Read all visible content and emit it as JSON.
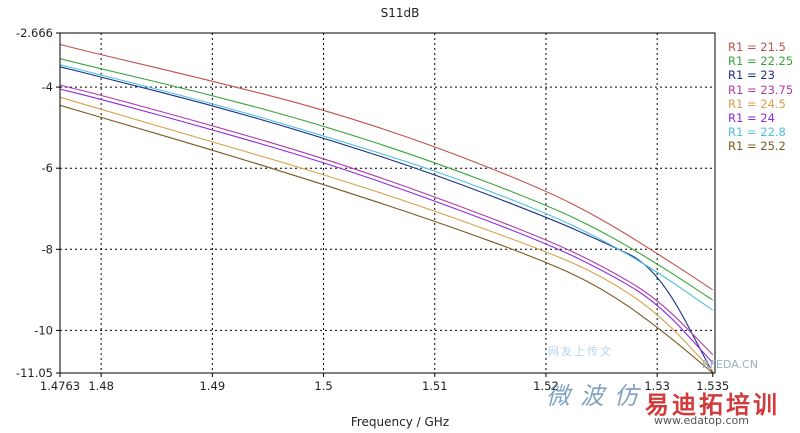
{
  "chart_data": {
    "type": "line",
    "title": "S11dB",
    "xlabel": "Frequency / GHz",
    "ylabel": "",
    "xlim": [
      1.4763,
      1.5352
    ],
    "ylim": [
      -11.05,
      -2.666
    ],
    "x_ticks": [
      1.4763,
      1.48,
      1.49,
      1.5,
      1.51,
      1.52,
      1.53,
      1.535
    ],
    "x_tick_labels": [
      "1.4763",
      "1.48",
      "1.49",
      "1.5",
      "1.51",
      "1.52",
      "1.53",
      "1.535"
    ],
    "y_ticks": [
      -2.666,
      -4,
      -6,
      -8,
      -10,
      -11.05
    ],
    "y_tick_labels": [
      "-2.666",
      "-4",
      "-6",
      "-8",
      "-10",
      "-11.05"
    ],
    "grid": true,
    "legend_position": "right",
    "series": [
      {
        "name": "R1 = 21.5",
        "color": "#c0504d",
        "x": [
          1.4763,
          1.48,
          1.49,
          1.5,
          1.51,
          1.52,
          1.525,
          1.53,
          1.535
        ],
        "y": [
          -2.95,
          -3.2,
          -3.85,
          -4.55,
          -5.45,
          -6.55,
          -7.25,
          -8.1,
          -9.0
        ]
      },
      {
        "name": "R1 = 22.25",
        "color": "#3aa53a",
        "x": [
          1.4763,
          1.48,
          1.49,
          1.5,
          1.51,
          1.52,
          1.525,
          1.53,
          1.535
        ],
        "y": [
          -3.3,
          -3.55,
          -4.2,
          -4.95,
          -5.85,
          -6.9,
          -7.55,
          -8.35,
          -9.25
        ]
      },
      {
        "name": "R1 = 23",
        "color": "#1b2f86",
        "x": [
          1.4763,
          1.48,
          1.49,
          1.5,
          1.51,
          1.52,
          1.525,
          1.53,
          1.535
        ],
        "y": [
          -3.5,
          -3.75,
          -4.45,
          -5.25,
          -6.15,
          -7.2,
          -7.8,
          -8.45,
          -11.05
        ]
      },
      {
        "name": "R1 = 23.75",
        "color": "#b03aa8",
        "x": [
          1.4763,
          1.48,
          1.49,
          1.5,
          1.51,
          1.52,
          1.525,
          1.53,
          1.535
        ],
        "y": [
          -3.95,
          -4.2,
          -4.95,
          -5.75,
          -6.7,
          -7.75,
          -8.4,
          -9.2,
          -10.6
        ]
      },
      {
        "name": "R1 = 24.5",
        "color": "#d6a24a",
        "x": [
          1.4763,
          1.48,
          1.49,
          1.5,
          1.51,
          1.52,
          1.525,
          1.53,
          1.535
        ],
        "y": [
          -4.25,
          -4.55,
          -5.35,
          -6.15,
          -7.05,
          -8.05,
          -8.65,
          -9.55,
          -11.0
        ]
      },
      {
        "name": "R1 = 24",
        "color": "#8a2be2",
        "x": [
          1.4763,
          1.48,
          1.49,
          1.5,
          1.51,
          1.52,
          1.525,
          1.53,
          1.535
        ],
        "y": [
          -4.05,
          -4.3,
          -5.05,
          -5.85,
          -6.8,
          -7.85,
          -8.5,
          -9.3,
          -10.8
        ]
      },
      {
        "name": "R1 = 22.8",
        "color": "#4fc0e0",
        "x": [
          1.4763,
          1.48,
          1.49,
          1.5,
          1.51,
          1.52,
          1.525,
          1.53,
          1.535
        ],
        "y": [
          -3.45,
          -3.7,
          -4.4,
          -5.2,
          -6.05,
          -7.1,
          -7.75,
          -8.55,
          -9.5
        ]
      },
      {
        "name": "R1 = 25.2",
        "color": "#7a5a20",
        "x": [
          1.4763,
          1.48,
          1.49,
          1.5,
          1.51,
          1.52,
          1.525,
          1.53,
          1.535
        ],
        "y": [
          -4.45,
          -4.75,
          -5.55,
          -6.4,
          -7.3,
          -8.3,
          -8.95,
          -9.9,
          -11.05
        ]
      }
    ]
  },
  "watermarks": {
    "line1": "网友上传文",
    "site": "RFEDA.CN",
    "line3": "微波仿",
    "brand": "易迪拓培训",
    "url": "www.edatop.com"
  }
}
